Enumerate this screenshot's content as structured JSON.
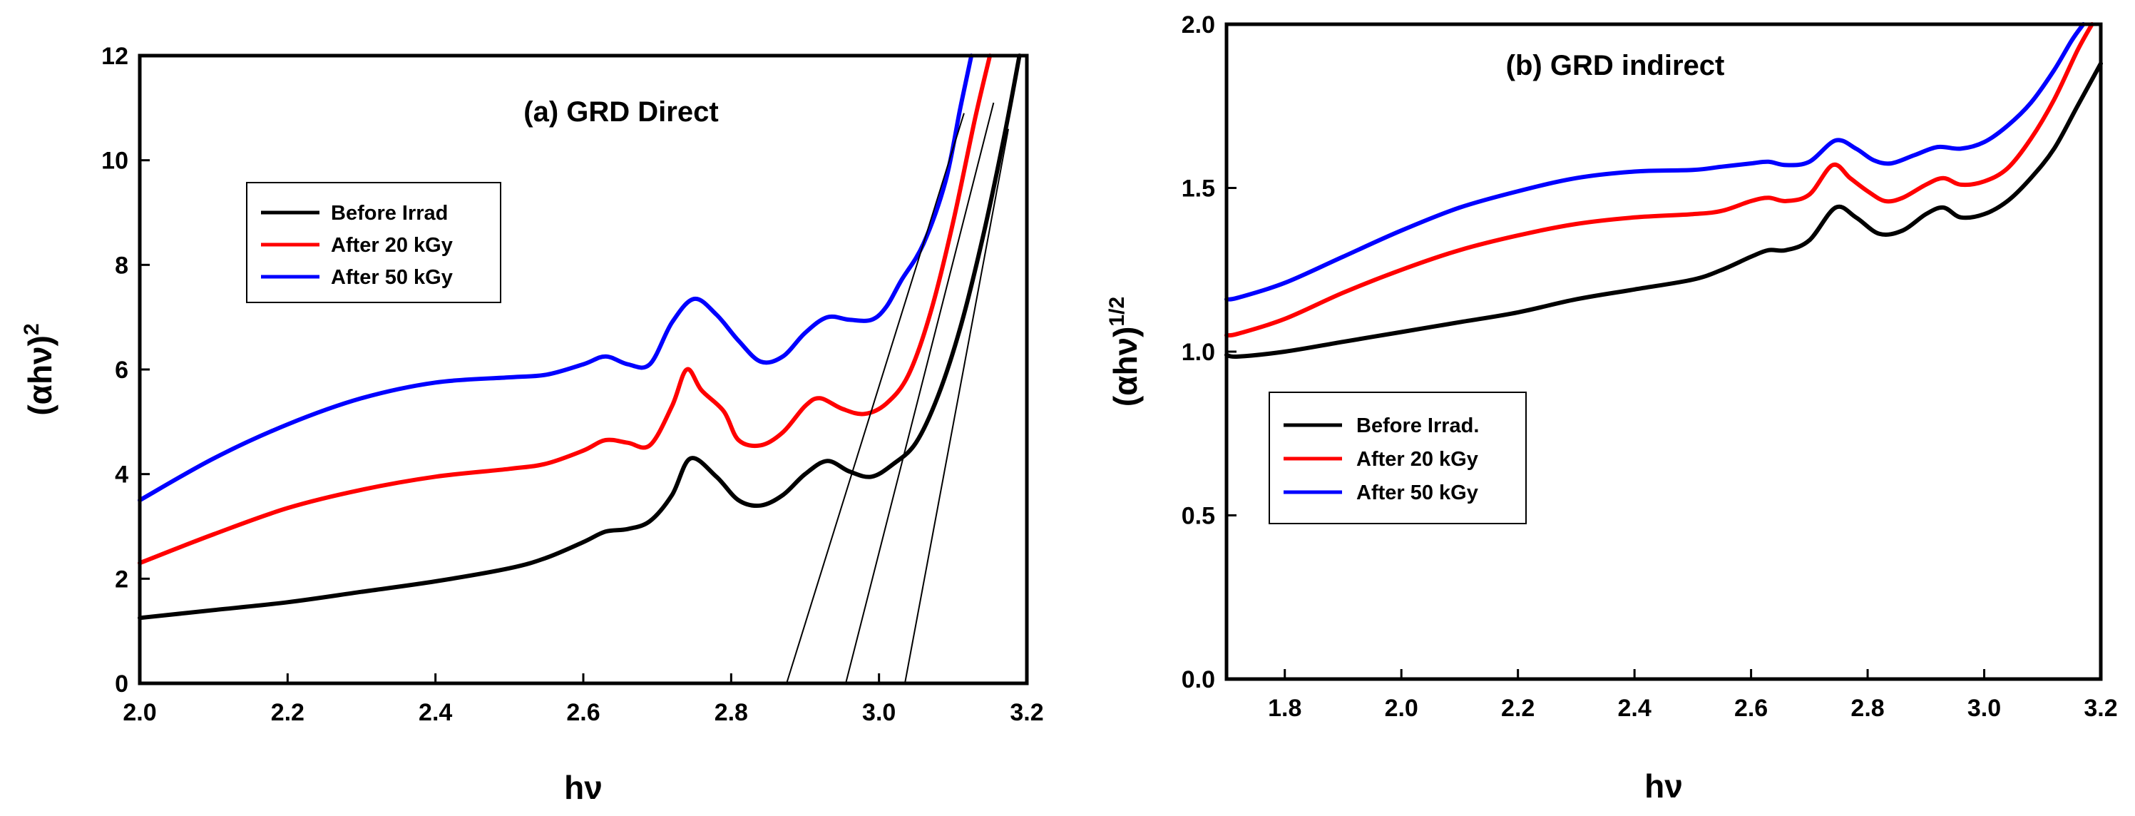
{
  "chart_data": [
    {
      "type": "line",
      "id": "a",
      "title": "(a) GRD Direct",
      "xlabel": "hν",
      "ylabel_base": "(αhν)",
      "ylabel_sup": "2",
      "xlim": [
        2.0,
        3.2
      ],
      "ylim": [
        0,
        12
      ],
      "xticks": [
        "2.0",
        "2.2",
        "2.4",
        "2.6",
        "2.8",
        "3.0",
        "3.2"
      ],
      "yticks": [
        "0",
        "2",
        "4",
        "6",
        "8",
        "10",
        "12"
      ],
      "legend_position": "upper-left",
      "series": [
        {
          "name": "Before Irrad",
          "color": "#000000",
          "x": [
            2.0,
            2.1,
            2.2,
            2.3,
            2.4,
            2.5,
            2.55,
            2.6,
            2.63,
            2.66,
            2.69,
            2.72,
            2.745,
            2.78,
            2.81,
            2.84,
            2.87,
            2.9,
            2.93,
            2.96,
            2.99,
            3.02,
            3.05,
            3.08,
            3.11,
            3.14,
            3.17,
            3.19
          ],
          "y": [
            1.25,
            1.4,
            1.55,
            1.75,
            1.95,
            2.2,
            2.4,
            2.7,
            2.9,
            2.95,
            3.1,
            3.6,
            4.3,
            3.95,
            3.5,
            3.4,
            3.6,
            4.0,
            4.25,
            4.05,
            3.95,
            4.2,
            4.6,
            5.5,
            6.8,
            8.5,
            10.5,
            12.0
          ]
        },
        {
          "name": "After 20 kGy",
          "color": "#ff0000",
          "x": [
            2.0,
            2.1,
            2.2,
            2.3,
            2.4,
            2.5,
            2.55,
            2.6,
            2.63,
            2.66,
            2.69,
            2.72,
            2.74,
            2.76,
            2.79,
            2.81,
            2.84,
            2.87,
            2.9,
            2.92,
            2.95,
            2.98,
            3.01,
            3.04,
            3.07,
            3.1,
            3.13,
            3.15
          ],
          "y": [
            2.3,
            2.85,
            3.35,
            3.7,
            3.95,
            4.1,
            4.2,
            4.45,
            4.65,
            4.6,
            4.55,
            5.3,
            6.0,
            5.6,
            5.2,
            4.65,
            4.55,
            4.8,
            5.3,
            5.45,
            5.25,
            5.15,
            5.35,
            5.9,
            7.1,
            8.8,
            10.8,
            12.0
          ]
        },
        {
          "name": "After 50 kGy",
          "color": "#0000ff",
          "x": [
            2.0,
            2.1,
            2.2,
            2.3,
            2.4,
            2.5,
            2.55,
            2.6,
            2.63,
            2.66,
            2.69,
            2.72,
            2.75,
            2.78,
            2.81,
            2.84,
            2.87,
            2.9,
            2.93,
            2.96,
            2.99,
            3.01,
            3.03,
            3.06,
            3.09,
            3.11,
            3.125
          ],
          "y": [
            3.5,
            4.3,
            4.95,
            5.45,
            5.75,
            5.85,
            5.9,
            6.1,
            6.25,
            6.1,
            6.1,
            6.9,
            7.35,
            7.05,
            6.55,
            6.15,
            6.25,
            6.7,
            7.0,
            6.95,
            6.95,
            7.2,
            7.7,
            8.4,
            9.6,
            11.0,
            12.0
          ]
        }
      ],
      "tangent_lines": [
        {
          "x1": 2.875,
          "y1": 0,
          "x2": 3.115,
          "y2": 10.9
        },
        {
          "x1": 2.955,
          "y1": 0,
          "x2": 3.155,
          "y2": 11.1
        },
        {
          "x1": 3.035,
          "y1": 0,
          "x2": 3.175,
          "y2": 10.6
        }
      ]
    },
    {
      "type": "line",
      "id": "b",
      "title": "(b) GRD indirect",
      "xlabel": "hν",
      "ylabel_base": "(αhν)",
      "ylabel_sup": "1/2",
      "xlim": [
        1.7,
        3.2
      ],
      "ylim": [
        0.0,
        2.0
      ],
      "xticks": [
        "1.8",
        "2.0",
        "2.2",
        "2.4",
        "2.6",
        "2.8",
        "3.0",
        "3.2"
      ],
      "yticks": [
        "0.0",
        "0.5",
        "1.0",
        "1.5",
        "2.0"
      ],
      "legend_position": "middle-left",
      "series": [
        {
          "name": "Before Irrad.",
          "color": "#000000",
          "x": [
            1.7,
            1.72,
            1.8,
            1.9,
            2.0,
            2.1,
            2.2,
            2.3,
            2.4,
            2.5,
            2.55,
            2.6,
            2.63,
            2.66,
            2.7,
            2.745,
            2.78,
            2.82,
            2.86,
            2.9,
            2.93,
            2.96,
            3.0,
            3.04,
            3.08,
            3.12,
            3.16,
            3.2
          ],
          "y": [
            0.99,
            0.985,
            1.0,
            1.03,
            1.06,
            1.09,
            1.12,
            1.16,
            1.19,
            1.22,
            1.25,
            1.29,
            1.31,
            1.31,
            1.34,
            1.44,
            1.41,
            1.36,
            1.37,
            1.42,
            1.44,
            1.41,
            1.42,
            1.46,
            1.53,
            1.62,
            1.75,
            1.88
          ]
        },
        {
          "name": "After 20 kGy",
          "color": "#ff0000",
          "x": [
            1.7,
            1.72,
            1.8,
            1.9,
            2.0,
            2.1,
            2.2,
            2.3,
            2.4,
            2.5,
            2.55,
            2.6,
            2.63,
            2.66,
            2.7,
            2.74,
            2.77,
            2.8,
            2.83,
            2.86,
            2.9,
            2.93,
            2.96,
            3.0,
            3.04,
            3.08,
            3.12,
            3.16,
            3.185
          ],
          "y": [
            1.05,
            1.055,
            1.1,
            1.18,
            1.25,
            1.31,
            1.355,
            1.39,
            1.41,
            1.42,
            1.43,
            1.46,
            1.47,
            1.46,
            1.48,
            1.57,
            1.53,
            1.49,
            1.46,
            1.47,
            1.51,
            1.53,
            1.51,
            1.52,
            1.56,
            1.65,
            1.77,
            1.92,
            2.0
          ]
        },
        {
          "name": "After 50 kGy",
          "color": "#0000ff",
          "x": [
            1.7,
            1.72,
            1.8,
            1.9,
            2.0,
            2.1,
            2.2,
            2.3,
            2.4,
            2.5,
            2.55,
            2.6,
            2.63,
            2.66,
            2.7,
            2.745,
            2.78,
            2.81,
            2.84,
            2.88,
            2.92,
            2.96,
            3.0,
            3.04,
            3.08,
            3.12,
            3.15,
            3.17
          ],
          "y": [
            1.16,
            1.165,
            1.21,
            1.29,
            1.37,
            1.44,
            1.49,
            1.53,
            1.55,
            1.555,
            1.565,
            1.575,
            1.58,
            1.57,
            1.58,
            1.645,
            1.62,
            1.585,
            1.575,
            1.6,
            1.625,
            1.62,
            1.64,
            1.69,
            1.76,
            1.86,
            1.95,
            2.0
          ]
        }
      ],
      "tangent_lines": []
    }
  ]
}
